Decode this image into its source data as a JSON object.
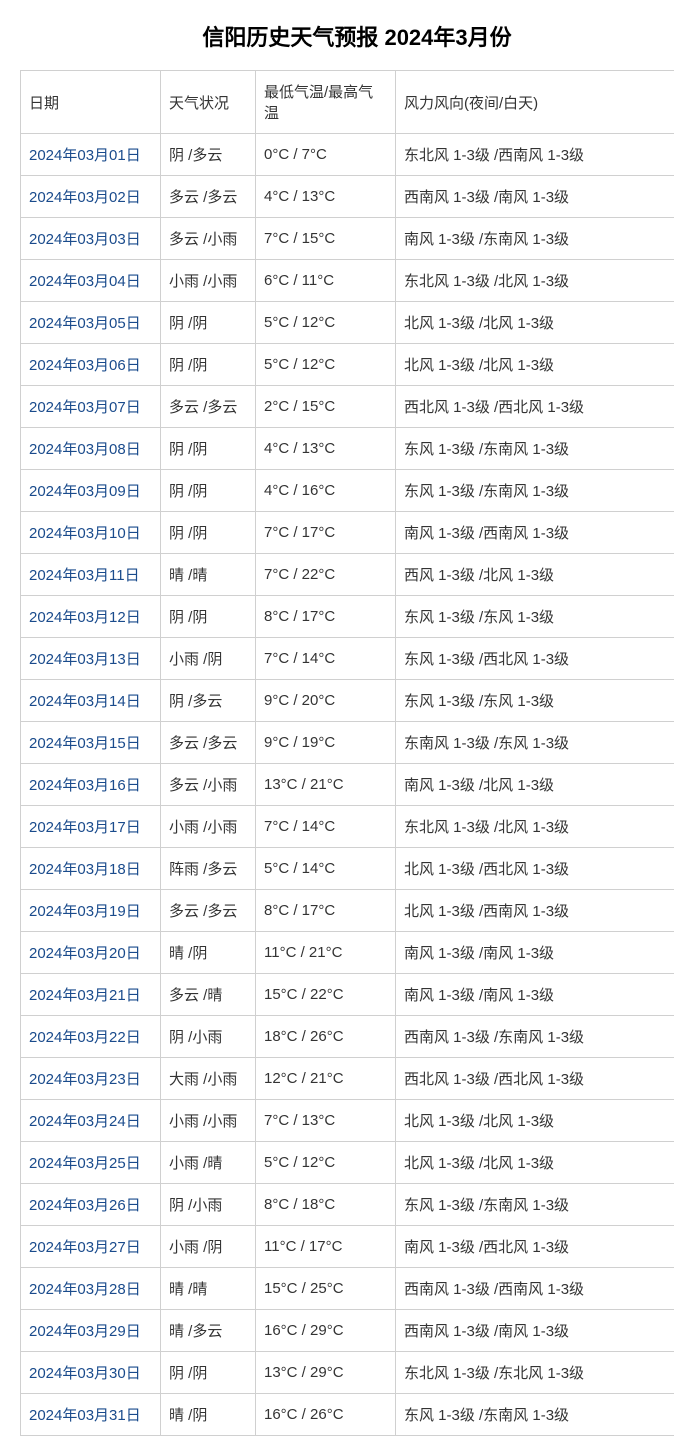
{
  "title": "信阳历史天气预报 2024年3月份",
  "columns": [
    "日期",
    "天气状况",
    "最低气温/最高气温",
    "风力风向(夜间/白天)"
  ],
  "colors": {
    "link": "#1a4b8c",
    "text": "#333333",
    "border": "#d0d0d0",
    "background": "#ffffff"
  },
  "rows": [
    {
      "date": "2024年03月01日",
      "weather": "阴 /多云",
      "temp": "0°C / 7°C",
      "wind": "东北风 1-3级 /西南风 1-3级"
    },
    {
      "date": "2024年03月02日",
      "weather": "多云 /多云",
      "temp": "4°C / 13°C",
      "wind": "西南风 1-3级 /南风 1-3级"
    },
    {
      "date": "2024年03月03日",
      "weather": "多云 /小雨",
      "temp": "7°C / 15°C",
      "wind": "南风 1-3级 /东南风 1-3级"
    },
    {
      "date": "2024年03月04日",
      "weather": "小雨 /小雨",
      "temp": "6°C / 11°C",
      "wind": "东北风 1-3级 /北风 1-3级"
    },
    {
      "date": "2024年03月05日",
      "weather": "阴 /阴",
      "temp": "5°C / 12°C",
      "wind": "北风 1-3级 /北风 1-3级"
    },
    {
      "date": "2024年03月06日",
      "weather": "阴 /阴",
      "temp": "5°C / 12°C",
      "wind": "北风 1-3级 /北风 1-3级"
    },
    {
      "date": "2024年03月07日",
      "weather": "多云 /多云",
      "temp": "2°C / 15°C",
      "wind": "西北风 1-3级 /西北风 1-3级"
    },
    {
      "date": "2024年03月08日",
      "weather": "阴 /阴",
      "temp": "4°C / 13°C",
      "wind": "东风 1-3级 /东南风 1-3级"
    },
    {
      "date": "2024年03月09日",
      "weather": "阴 /阴",
      "temp": "4°C / 16°C",
      "wind": "东风 1-3级 /东南风 1-3级"
    },
    {
      "date": "2024年03月10日",
      "weather": "阴 /阴",
      "temp": "7°C / 17°C",
      "wind": "南风 1-3级 /西南风 1-3级"
    },
    {
      "date": "2024年03月11日",
      "weather": "晴 /晴",
      "temp": "7°C / 22°C",
      "wind": "西风 1-3级 /北风 1-3级"
    },
    {
      "date": "2024年03月12日",
      "weather": "阴 /阴",
      "temp": "8°C / 17°C",
      "wind": "东风 1-3级 /东风 1-3级"
    },
    {
      "date": "2024年03月13日",
      "weather": "小雨 /阴",
      "temp": "7°C / 14°C",
      "wind": "东风 1-3级 /西北风 1-3级"
    },
    {
      "date": "2024年03月14日",
      "weather": "阴 /多云",
      "temp": "9°C / 20°C",
      "wind": "东风 1-3级 /东风 1-3级"
    },
    {
      "date": "2024年03月15日",
      "weather": "多云 /多云",
      "temp": "9°C / 19°C",
      "wind": "东南风 1-3级 /东风 1-3级"
    },
    {
      "date": "2024年03月16日",
      "weather": "多云 /小雨",
      "temp": "13°C / 21°C",
      "wind": "南风 1-3级 /北风 1-3级"
    },
    {
      "date": "2024年03月17日",
      "weather": "小雨 /小雨",
      "temp": "7°C / 14°C",
      "wind": "东北风 1-3级 /北风 1-3级"
    },
    {
      "date": "2024年03月18日",
      "weather": "阵雨 /多云",
      "temp": "5°C / 14°C",
      "wind": "北风 1-3级 /西北风 1-3级"
    },
    {
      "date": "2024年03月19日",
      "weather": "多云 /多云",
      "temp": "8°C / 17°C",
      "wind": "北风 1-3级 /西南风 1-3级"
    },
    {
      "date": "2024年03月20日",
      "weather": "晴 /阴",
      "temp": "11°C / 21°C",
      "wind": "南风 1-3级 /南风 1-3级"
    },
    {
      "date": "2024年03月21日",
      "weather": "多云 /晴",
      "temp": "15°C / 22°C",
      "wind": "南风 1-3级 /南风 1-3级"
    },
    {
      "date": "2024年03月22日",
      "weather": "阴 /小雨",
      "temp": "18°C / 26°C",
      "wind": "西南风 1-3级 /东南风 1-3级"
    },
    {
      "date": "2024年03月23日",
      "weather": "大雨 /小雨",
      "temp": "12°C / 21°C",
      "wind": "西北风 1-3级 /西北风 1-3级"
    },
    {
      "date": "2024年03月24日",
      "weather": "小雨 /小雨",
      "temp": "7°C / 13°C",
      "wind": "北风 1-3级 /北风 1-3级"
    },
    {
      "date": "2024年03月25日",
      "weather": "小雨 /晴",
      "temp": "5°C / 12°C",
      "wind": "北风 1-3级 /北风 1-3级"
    },
    {
      "date": "2024年03月26日",
      "weather": "阴 /小雨",
      "temp": "8°C / 18°C",
      "wind": "东风 1-3级 /东南风 1-3级"
    },
    {
      "date": "2024年03月27日",
      "weather": "小雨 /阴",
      "temp": "11°C / 17°C",
      "wind": "南风 1-3级 /西北风 1-3级"
    },
    {
      "date": "2024年03月28日",
      "weather": "晴 /晴",
      "temp": "15°C / 25°C",
      "wind": "西南风 1-3级 /西南风 1-3级"
    },
    {
      "date": "2024年03月29日",
      "weather": "晴 /多云",
      "temp": "16°C / 29°C",
      "wind": "西南风 1-3级 /南风 1-3级"
    },
    {
      "date": "2024年03月30日",
      "weather": "阴 /阴",
      "temp": "13°C / 29°C",
      "wind": "东北风 1-3级 /东北风 1-3级"
    },
    {
      "date": "2024年03月31日",
      "weather": "晴 /阴",
      "temp": "16°C / 26°C",
      "wind": "东风 1-3级 /东南风 1-3级"
    }
  ]
}
